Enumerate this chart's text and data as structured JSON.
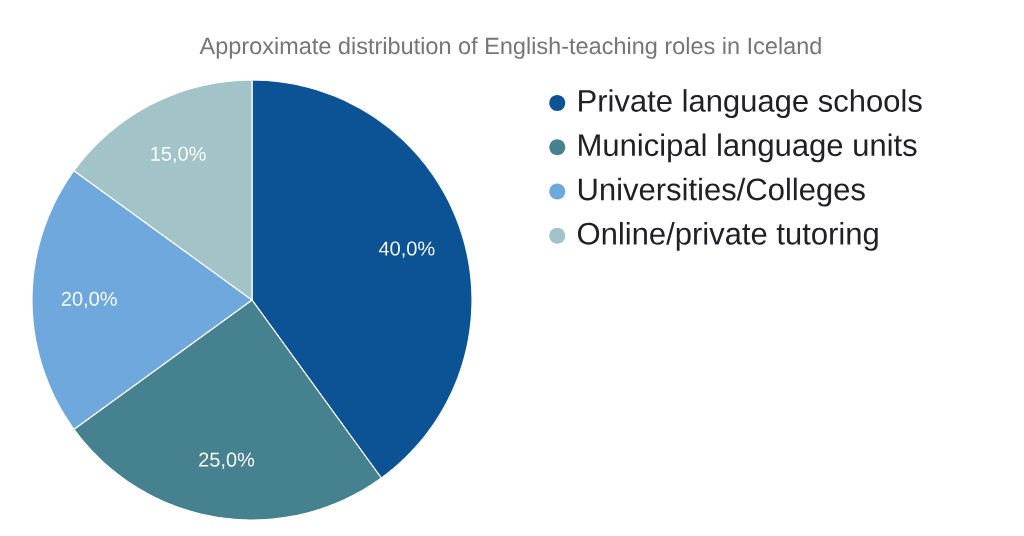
{
  "chart_data": {
    "type": "pie",
    "title": "Approximate distribution of English-teaching roles in Iceland",
    "categories": [
      "Private language schools",
      "Municipal language units",
      "Universities/Colleges",
      "Online/private tutoring"
    ],
    "values": [
      40,
      25,
      20,
      15
    ],
    "colors": [
      "#0b5394",
      "#45818e",
      "#6fa8dc",
      "#a2c4c9"
    ],
    "value_labels": [
      "40,0%",
      "25,0%",
      "20,0%",
      "15,0%"
    ],
    "legend": "top right"
  }
}
